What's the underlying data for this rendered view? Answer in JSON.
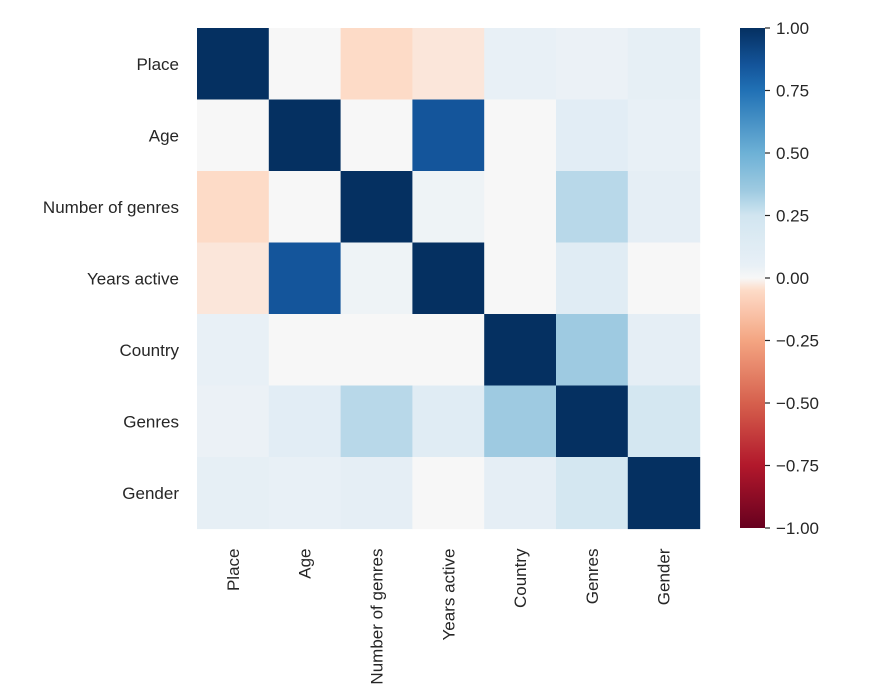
{
  "chart_data": {
    "type": "heatmap",
    "title": "",
    "xlabel": "",
    "ylabel": "",
    "rows": [
      "Place",
      "Age",
      "Number of genres",
      "Years active",
      "Country",
      "Genres",
      "Gender"
    ],
    "columns": [
      "Place",
      "Age",
      "Number of genres",
      "Years active",
      "Country",
      "Genres",
      "Gender"
    ],
    "values": [
      [
        1.0,
        0.0,
        -0.05,
        -0.03,
        0.05,
        0.04,
        0.07
      ],
      [
        0.0,
        1.0,
        0.0,
        0.85,
        0.0,
        0.1,
        0.05
      ],
      [
        -0.05,
        0.0,
        1.0,
        0.03,
        0.0,
        0.3,
        0.08
      ],
      [
        -0.03,
        0.85,
        0.03,
        1.0,
        0.0,
        0.12,
        0.0
      ],
      [
        0.05,
        0.0,
        0.0,
        0.0,
        1.0,
        0.35,
        0.08
      ],
      [
        0.04,
        0.1,
        0.3,
        0.12,
        0.35,
        1.0,
        0.22
      ],
      [
        0.07,
        0.05,
        0.08,
        0.0,
        0.08,
        0.22,
        1.0
      ]
    ],
    "vmin": -1,
    "vmax": 1,
    "colormap": "RdBu",
    "colorbar": {
      "ticks": [
        1.0,
        0.75,
        0.5,
        0.25,
        0.0,
        -0.25,
        -0.5,
        -0.75,
        -1.0
      ],
      "tick_labels": [
        "1.00",
        "0.75",
        "0.50",
        "0.25",
        "0.00",
        "−0.25",
        "−0.50",
        "−0.75",
        "−1.00"
      ]
    },
    "grid": false
  }
}
